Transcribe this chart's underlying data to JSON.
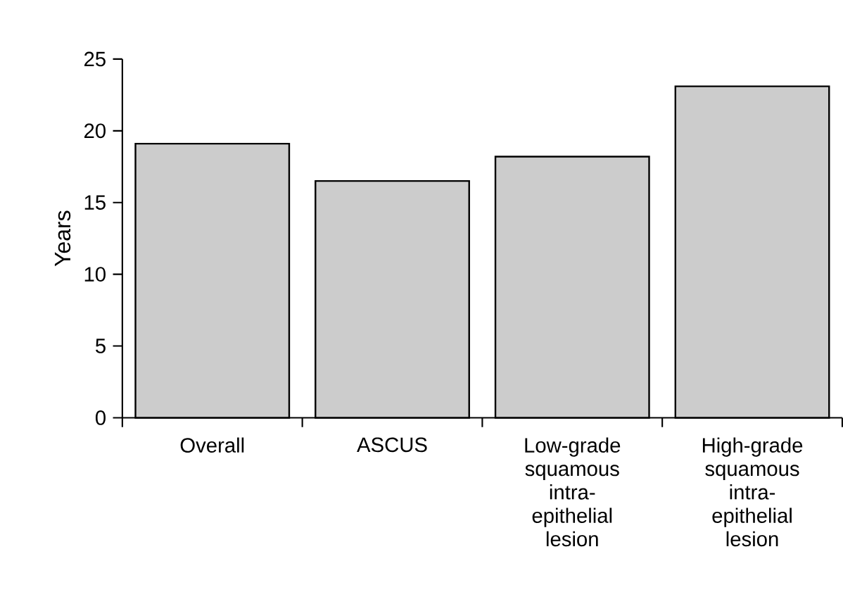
{
  "chart_data": {
    "type": "bar",
    "ylabel": "Years",
    "categories": [
      "Overall",
      "ASCUS",
      "Low-grade squamous intra-epithelial lesion",
      "High-grade squamous intra-epithelial lesion"
    ],
    "values": [
      19.1,
      16.5,
      18.2,
      23.1
    ],
    "color": "#cccccc",
    "ylim": [
      0,
      25
    ],
    "yticks": [
      0,
      5,
      10,
      15,
      20,
      25
    ],
    "grid": false
  }
}
